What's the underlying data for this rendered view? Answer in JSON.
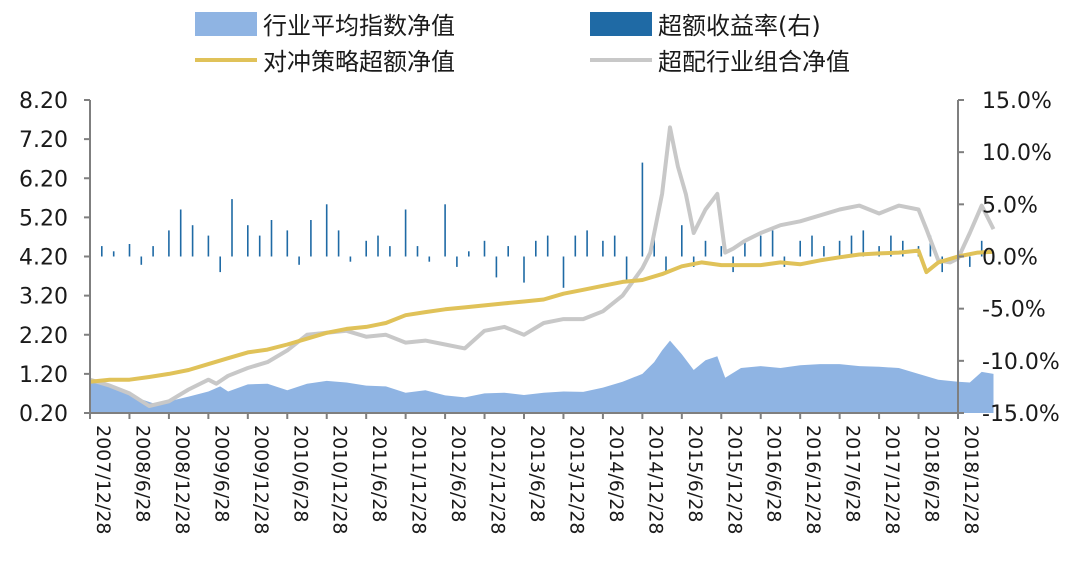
{
  "chart_data": {
    "type": "bar+line+area",
    "y_left": {
      "ticks": [
        "0.20",
        "1.20",
        "2.20",
        "3.20",
        "4.20",
        "5.20",
        "6.20",
        "7.20",
        "8.20"
      ],
      "range": [
        0.2,
        8.2
      ]
    },
    "y_right": {
      "ticks": [
        "-15.0%",
        "-10.0%",
        "-5.0%",
        "0.0%",
        "5.0%",
        "10.0%",
        "15.0%"
      ],
      "range": [
        -15,
        15
      ],
      "unit": "%"
    },
    "x_ticks": [
      "2007/12/28",
      "2008/6/28",
      "2008/12/28",
      "2009/6/28",
      "2009/12/28",
      "2010/6/28",
      "2010/12/28",
      "2011/6/28",
      "2011/12/28",
      "2012/6/28",
      "2012/12/28",
      "2013/6/28",
      "2013/12/28",
      "2014/6/28",
      "2014/12/28",
      "2015/6/28",
      "2015/12/28",
      "2016/6/28",
      "2016/12/28",
      "2017/6/28",
      "2017/12/28",
      "2018/6/28",
      "2018/12/28"
    ],
    "legend": [
      {
        "key": "avg",
        "label": "行业平均指数净值",
        "kind": "area",
        "color": "#8fb4e3"
      },
      {
        "key": "excess",
        "label": "超额收益率(右)",
        "kind": "bar",
        "color": "#1f6aa5"
      },
      {
        "key": "hedge",
        "label": "对冲策略超额净值",
        "kind": "line",
        "color": "#e0c259"
      },
      {
        "key": "combo",
        "label": "超配行业组合净值",
        "kind": "line",
        "color": "#c8c8c8"
      }
    ],
    "series": [
      {
        "name": "行业平均指数净值",
        "axis": "left",
        "points": [
          [
            0,
            1.0
          ],
          [
            0.5,
            0.92
          ],
          [
            1,
            0.72
          ],
          [
            1.3,
            0.55
          ],
          [
            1.6,
            0.45
          ],
          [
            2,
            0.5
          ],
          [
            2.5,
            0.62
          ],
          [
            3,
            0.75
          ],
          [
            3.3,
            0.88
          ],
          [
            3.5,
            0.75
          ],
          [
            4,
            0.93
          ],
          [
            4.5,
            0.95
          ],
          [
            5,
            0.78
          ],
          [
            5.5,
            0.95
          ],
          [
            6,
            1.02
          ],
          [
            6.5,
            0.98
          ],
          [
            7,
            0.9
          ],
          [
            7.5,
            0.88
          ],
          [
            8,
            0.72
          ],
          [
            8.5,
            0.78
          ],
          [
            9,
            0.65
          ],
          [
            9.5,
            0.6
          ],
          [
            10,
            0.7
          ],
          [
            10.5,
            0.72
          ],
          [
            11,
            0.66
          ],
          [
            11.5,
            0.72
          ],
          [
            12,
            0.75
          ],
          [
            12.5,
            0.74
          ],
          [
            13,
            0.85
          ],
          [
            13.5,
            1.0
          ],
          [
            14,
            1.2
          ],
          [
            14.3,
            1.5
          ],
          [
            14.5,
            1.8
          ],
          [
            14.7,
            2.05
          ],
          [
            15,
            1.7
          ],
          [
            15.3,
            1.3
          ],
          [
            15.6,
            1.55
          ],
          [
            15.9,
            1.65
          ],
          [
            16.1,
            1.1
          ],
          [
            16.5,
            1.35
          ],
          [
            17,
            1.4
          ],
          [
            17.5,
            1.35
          ],
          [
            18,
            1.42
          ],
          [
            18.5,
            1.45
          ],
          [
            19,
            1.45
          ],
          [
            19.5,
            1.4
          ],
          [
            20,
            1.38
          ],
          [
            20.5,
            1.35
          ],
          [
            21,
            1.2
          ],
          [
            21.5,
            1.05
          ],
          [
            22,
            1.0
          ],
          [
            22.3,
            0.98
          ],
          [
            22.6,
            1.25
          ],
          [
            22.9,
            1.2
          ]
        ]
      },
      {
        "name": "对冲策略超额净值",
        "axis": "left",
        "points": [
          [
            0,
            1.0
          ],
          [
            0.5,
            1.05
          ],
          [
            1,
            1.05
          ],
          [
            1.5,
            1.12
          ],
          [
            2,
            1.2
          ],
          [
            2.5,
            1.3
          ],
          [
            3,
            1.45
          ],
          [
            3.5,
            1.6
          ],
          [
            4,
            1.75
          ],
          [
            4.5,
            1.82
          ],
          [
            5,
            1.95
          ],
          [
            5.5,
            2.1
          ],
          [
            6,
            2.25
          ],
          [
            6.5,
            2.35
          ],
          [
            7,
            2.4
          ],
          [
            7.5,
            2.5
          ],
          [
            8,
            2.7
          ],
          [
            8.5,
            2.78
          ],
          [
            9,
            2.85
          ],
          [
            9.5,
            2.9
          ],
          [
            10,
            2.95
          ],
          [
            10.5,
            3.0
          ],
          [
            11,
            3.05
          ],
          [
            11.5,
            3.1
          ],
          [
            12,
            3.25
          ],
          [
            12.5,
            3.35
          ],
          [
            13,
            3.45
          ],
          [
            13.5,
            3.55
          ],
          [
            14,
            3.6
          ],
          [
            14.5,
            3.75
          ],
          [
            15,
            3.95
          ],
          [
            15.5,
            4.05
          ],
          [
            16,
            3.98
          ],
          [
            16.5,
            3.98
          ],
          [
            17,
            3.98
          ],
          [
            17.5,
            4.05
          ],
          [
            18,
            4.0
          ],
          [
            18.5,
            4.1
          ],
          [
            19,
            4.18
          ],
          [
            19.5,
            4.25
          ],
          [
            20,
            4.28
          ],
          [
            20.5,
            4.3
          ],
          [
            21,
            4.35
          ],
          [
            21.2,
            3.8
          ],
          [
            21.5,
            4.05
          ],
          [
            22,
            4.2
          ],
          [
            22.5,
            4.3
          ],
          [
            22.9,
            4.32
          ]
        ]
      },
      {
        "name": "超配行业组合净值",
        "axis": "left",
        "points": [
          [
            0,
            1.05
          ],
          [
            0.5,
            0.9
          ],
          [
            1,
            0.7
          ],
          [
            1.5,
            0.38
          ],
          [
            2,
            0.5
          ],
          [
            2.5,
            0.8
          ],
          [
            3,
            1.05
          ],
          [
            3.2,
            0.95
          ],
          [
            3.5,
            1.15
          ],
          [
            4,
            1.35
          ],
          [
            4.5,
            1.5
          ],
          [
            5,
            1.8
          ],
          [
            5.5,
            2.2
          ],
          [
            6,
            2.25
          ],
          [
            6.5,
            2.3
          ],
          [
            7,
            2.15
          ],
          [
            7.5,
            2.2
          ],
          [
            8,
            2.0
          ],
          [
            8.5,
            2.05
          ],
          [
            9,
            1.95
          ],
          [
            9.5,
            1.85
          ],
          [
            10,
            2.3
          ],
          [
            10.5,
            2.4
          ],
          [
            11,
            2.2
          ],
          [
            11.5,
            2.5
          ],
          [
            12,
            2.6
          ],
          [
            12.5,
            2.6
          ],
          [
            13,
            2.8
          ],
          [
            13.5,
            3.2
          ],
          [
            14,
            3.9
          ],
          [
            14.2,
            4.3
          ],
          [
            14.5,
            5.8
          ],
          [
            14.7,
            7.5
          ],
          [
            14.9,
            6.5
          ],
          [
            15.1,
            5.8
          ],
          [
            15.3,
            4.8
          ],
          [
            15.6,
            5.4
          ],
          [
            15.9,
            5.8
          ],
          [
            16.1,
            4.3
          ],
          [
            16.3,
            4.4
          ],
          [
            16.6,
            4.6
          ],
          [
            17,
            4.8
          ],
          [
            17.5,
            5.0
          ],
          [
            18,
            5.1
          ],
          [
            18.5,
            5.25
          ],
          [
            19,
            5.4
          ],
          [
            19.5,
            5.5
          ],
          [
            20,
            5.3
          ],
          [
            20.5,
            5.5
          ],
          [
            21,
            5.4
          ],
          [
            21.2,
            4.9
          ],
          [
            21.5,
            4.1
          ],
          [
            21.8,
            4.05
          ],
          [
            22,
            4.15
          ],
          [
            22.3,
            4.8
          ],
          [
            22.6,
            5.5
          ],
          [
            22.9,
            4.9
          ]
        ]
      },
      {
        "name": "超额收益率(右)",
        "axis": "right",
        "points": [
          [
            0,
            -0.5
          ],
          [
            0.3,
            1.0
          ],
          [
            0.6,
            0.5
          ],
          [
            1,
            1.2
          ],
          [
            1.3,
            -0.8
          ],
          [
            1.6,
            1.0
          ],
          [
            2,
            2.5
          ],
          [
            2.3,
            4.5
          ],
          [
            2.6,
            3.0
          ],
          [
            3,
            2.0
          ],
          [
            3.3,
            -1.5
          ],
          [
            3.6,
            5.5
          ],
          [
            4,
            3.0
          ],
          [
            4.3,
            2.0
          ],
          [
            4.6,
            3.5
          ],
          [
            5,
            2.5
          ],
          [
            5.3,
            -0.8
          ],
          [
            5.6,
            3.5
          ],
          [
            6,
            5.0
          ],
          [
            6.3,
            2.5
          ],
          [
            6.6,
            -0.5
          ],
          [
            7,
            1.5
          ],
          [
            7.3,
            2.0
          ],
          [
            7.6,
            1.0
          ],
          [
            8,
            4.5
          ],
          [
            8.3,
            1.0
          ],
          [
            8.6,
            -0.5
          ],
          [
            9,
            5.0
          ],
          [
            9.3,
            -1.0
          ],
          [
            9.6,
            0.5
          ],
          [
            10,
            1.5
          ],
          [
            10.3,
            -2.0
          ],
          [
            10.6,
            1.0
          ],
          [
            11,
            -2.5
          ],
          [
            11.3,
            1.5
          ],
          [
            11.6,
            2.0
          ],
          [
            12,
            -3.0
          ],
          [
            12.3,
            2.0
          ],
          [
            12.6,
            2.5
          ],
          [
            13,
            1.5
          ],
          [
            13.3,
            2.0
          ],
          [
            13.6,
            -2.5
          ],
          [
            14,
            9.0
          ],
          [
            14.3,
            2.5
          ],
          [
            14.6,
            -1.5
          ],
          [
            15,
            3.0
          ],
          [
            15.3,
            -1.0
          ],
          [
            15.6,
            1.5
          ],
          [
            16,
            1.0
          ],
          [
            16.3,
            -1.5
          ],
          [
            16.6,
            1.5
          ],
          [
            17,
            2.0
          ],
          [
            17.3,
            2.5
          ],
          [
            17.6,
            -1.0
          ],
          [
            18,
            1.5
          ],
          [
            18.3,
            2.0
          ],
          [
            18.6,
            1.0
          ],
          [
            19,
            1.5
          ],
          [
            19.3,
            2.0
          ],
          [
            19.6,
            2.5
          ],
          [
            20,
            1.0
          ],
          [
            20.3,
            2.0
          ],
          [
            20.6,
            1.5
          ],
          [
            21,
            1.0
          ],
          [
            21.3,
            2.0
          ],
          [
            21.6,
            -1.5
          ],
          [
            22,
            2.0
          ],
          [
            22.3,
            -1.0
          ],
          [
            22.6,
            1.5
          ],
          [
            22.9,
            -0.5
          ]
        ]
      }
    ]
  }
}
